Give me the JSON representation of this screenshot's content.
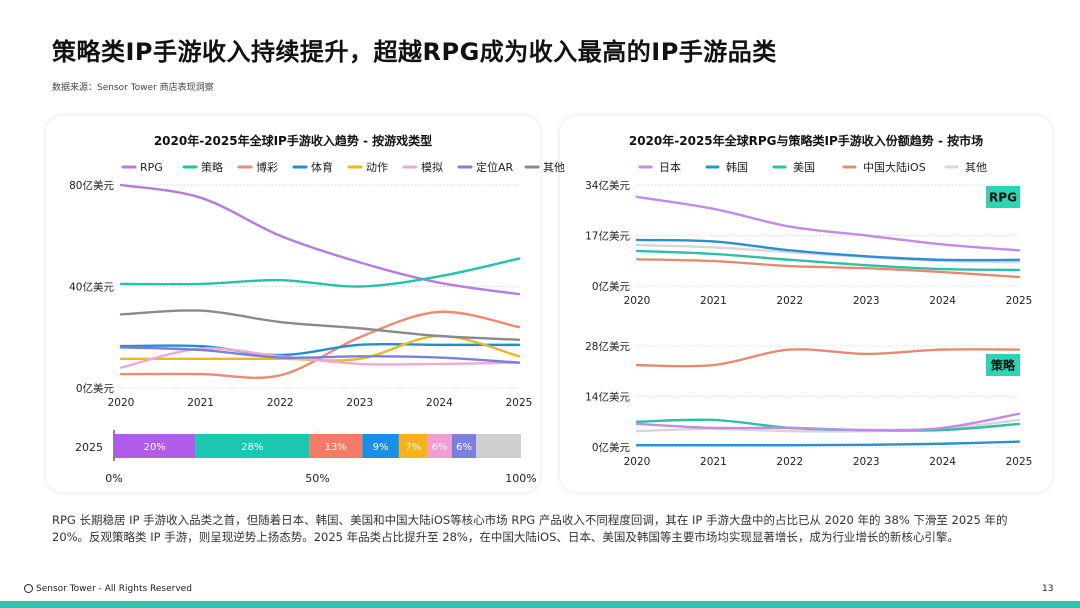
{
  "page": {
    "title": "策略类IP手游收入持续提升，超越RPG成为收入最高的IP手游品类",
    "source": "数据来源：Sensor Tower 商店表现洞察",
    "paragraph": "RPG 长期稳居 IP 手游收入品类之首，但随着日本、韩国、美国和中国大陆iOS等核心市场 RPG 产品收入不同程度回调，其在 IP 手游大盘中的占比已从 2020 年的 38% 下滑至 2025 年的 20%。反观策略类 IP 手游，则呈现逆势上扬态势。2025 年品类占比提升至 28%，在中国大陆iOS、日本、美国及韩国等主要市场均实现显著增长，成为行业增长的新核心引擎。",
    "footer": "Sensor Tower - All Rights Reserved",
    "page_number": "13",
    "accent_color": "#2bc7b0"
  },
  "chart_data": [
    {
      "type": "line",
      "title": "2020年-2025年全球IP手游收入趋势 - 按游戏类型",
      "x": [
        "2020",
        "2021",
        "2022",
        "2023",
        "2024",
        "2025"
      ],
      "yticks": [
        "0亿美元",
        "40亿美元",
        "80亿美元"
      ],
      "ytick_values": [
        0,
        40,
        80
      ],
      "ylim": [
        0,
        80
      ],
      "grid": true,
      "legend": "top",
      "series": [
        {
          "name": "RPG",
          "color": "#b57be0",
          "values": [
            80,
            75,
            60,
            49.5,
            41.5,
            37
          ]
        },
        {
          "name": "策略",
          "color": "#22c3a9",
          "values": [
            41,
            41,
            42.5,
            40,
            44,
            51
          ]
        },
        {
          "name": "博彩",
          "color": "#ee8a72",
          "values": [
            5.5,
            5.5,
            5,
            20,
            30,
            24
          ]
        },
        {
          "name": "体育",
          "color": "#1f8fd0",
          "values": [
            16.5,
            16.5,
            13,
            17,
            17,
            17
          ]
        },
        {
          "name": "动作",
          "color": "#f0b622",
          "values": [
            11.5,
            11.5,
            11.5,
            11.5,
            20.5,
            12.5
          ]
        },
        {
          "name": "模拟",
          "color": "#f2a9cf",
          "values": [
            8,
            15.5,
            12.5,
            9.5,
            9.5,
            10
          ]
        },
        {
          "name": "定位AR",
          "color": "#7d7ed8",
          "values": [
            16,
            15,
            12,
            12.5,
            12,
            10
          ]
        },
        {
          "name": "其他",
          "color": "#8a8a8a",
          "values": [
            29,
            30.5,
            26,
            23.5,
            20.5,
            19
          ]
        }
      ]
    },
    {
      "type": "bar",
      "stacked": true,
      "orientation": "horizontal",
      "category": "2025",
      "xticks": [
        "0%",
        "50%",
        "100%"
      ],
      "xlim": [
        0,
        100
      ],
      "segments": [
        {
          "name": "RPG",
          "value": 20,
          "label": "20%",
          "color": "#b05ce8"
        },
        {
          "name": "策略",
          "value": 28,
          "label": "28%",
          "color": "#18c9b0"
        },
        {
          "name": "博彩",
          "value": 13,
          "label": "13%",
          "color": "#f47c66"
        },
        {
          "name": "体育",
          "value": 9,
          "label": "9%",
          "color": "#1a8fe6"
        },
        {
          "name": "动作",
          "value": 7,
          "label": "7%",
          "color": "#f7b21a"
        },
        {
          "name": "模拟",
          "value": 6,
          "label": "6%",
          "color": "#f49bd0"
        },
        {
          "name": "定位AR",
          "value": 6,
          "label": "6%",
          "color": "#7a80e0"
        },
        {
          "name": "其他",
          "value": 11,
          "label": "",
          "color": "#cfcfcf"
        }
      ]
    },
    {
      "type": "line",
      "title": "2020年-2025年全球RPG与策略类IP手游收入份额趋势 - 按市场",
      "legend": "top",
      "legend_entries": [
        {
          "name": "日本",
          "color": "#c58ae6"
        },
        {
          "name": "韩国",
          "color": "#2c8fcf"
        },
        {
          "name": "美国",
          "color": "#2fbfa5"
        },
        {
          "name": "中国大陆iOS",
          "color": "#e48a74"
        },
        {
          "name": "其他",
          "color": "#d7d7d7"
        }
      ],
      "panels": [
        {
          "badge": "RPG",
          "x": [
            "2020",
            "2021",
            "2022",
            "2023",
            "2024",
            "2025"
          ],
          "yticks": [
            "0亿美元",
            "17亿美元",
            "34亿美元"
          ],
          "ytick_values": [
            0,
            17,
            34
          ],
          "ylim": [
            0,
            34
          ],
          "series": [
            {
              "name": "其他",
              "color": "#d7d7d7",
              "values": [
                13.8,
                13,
                11.4,
                9.8,
                8.4,
                8
              ]
            },
            {
              "name": "中国大陆iOS",
              "color": "#e48a74",
              "values": [
                9,
                8.4,
                6.7,
                6,
                4.7,
                3
              ]
            },
            {
              "name": "美国",
              "color": "#2fbfa5",
              "values": [
                11.8,
                10.8,
                8.8,
                7,
                5.7,
                5.4
              ]
            },
            {
              "name": "韩国",
              "color": "#2c8fcf",
              "values": [
                15.5,
                15,
                12,
                10,
                8.8,
                8.8
              ]
            },
            {
              "name": "日本",
              "color": "#c58ae6",
              "values": [
                30,
                26,
                20,
                17,
                14,
                12
              ]
            }
          ]
        },
        {
          "badge": "策略",
          "x": [
            "2020",
            "2021",
            "2022",
            "2023",
            "2024",
            "2025"
          ],
          "yticks": [
            "0亿美元",
            "14亿美元",
            "28亿美元"
          ],
          "ytick_values": [
            0,
            14,
            28
          ],
          "ylim": [
            0,
            28
          ],
          "series": [
            {
              "name": "其他",
              "color": "#d7d7d7",
              "values": [
                4.4,
                5,
                4.4,
                4.4,
                5,
                7.5
              ]
            },
            {
              "name": "韩国",
              "color": "#2c8fcf",
              "values": [
                0.5,
                0.5,
                0.5,
                0.6,
                0.9,
                1.5
              ]
            },
            {
              "name": "美国",
              "color": "#2fbfa5",
              "values": [
                7,
                7.5,
                5.3,
                4.7,
                4.7,
                6.4
              ]
            },
            {
              "name": "日本",
              "color": "#c58ae6",
              "values": [
                6.4,
                5.3,
                5.3,
                4.7,
                5.3,
                9.2
              ]
            },
            {
              "name": "中国大陆iOS",
              "color": "#e48a74",
              "values": [
                22.7,
                22.7,
                27,
                25.8,
                27,
                27
              ]
            }
          ]
        }
      ]
    }
  ]
}
